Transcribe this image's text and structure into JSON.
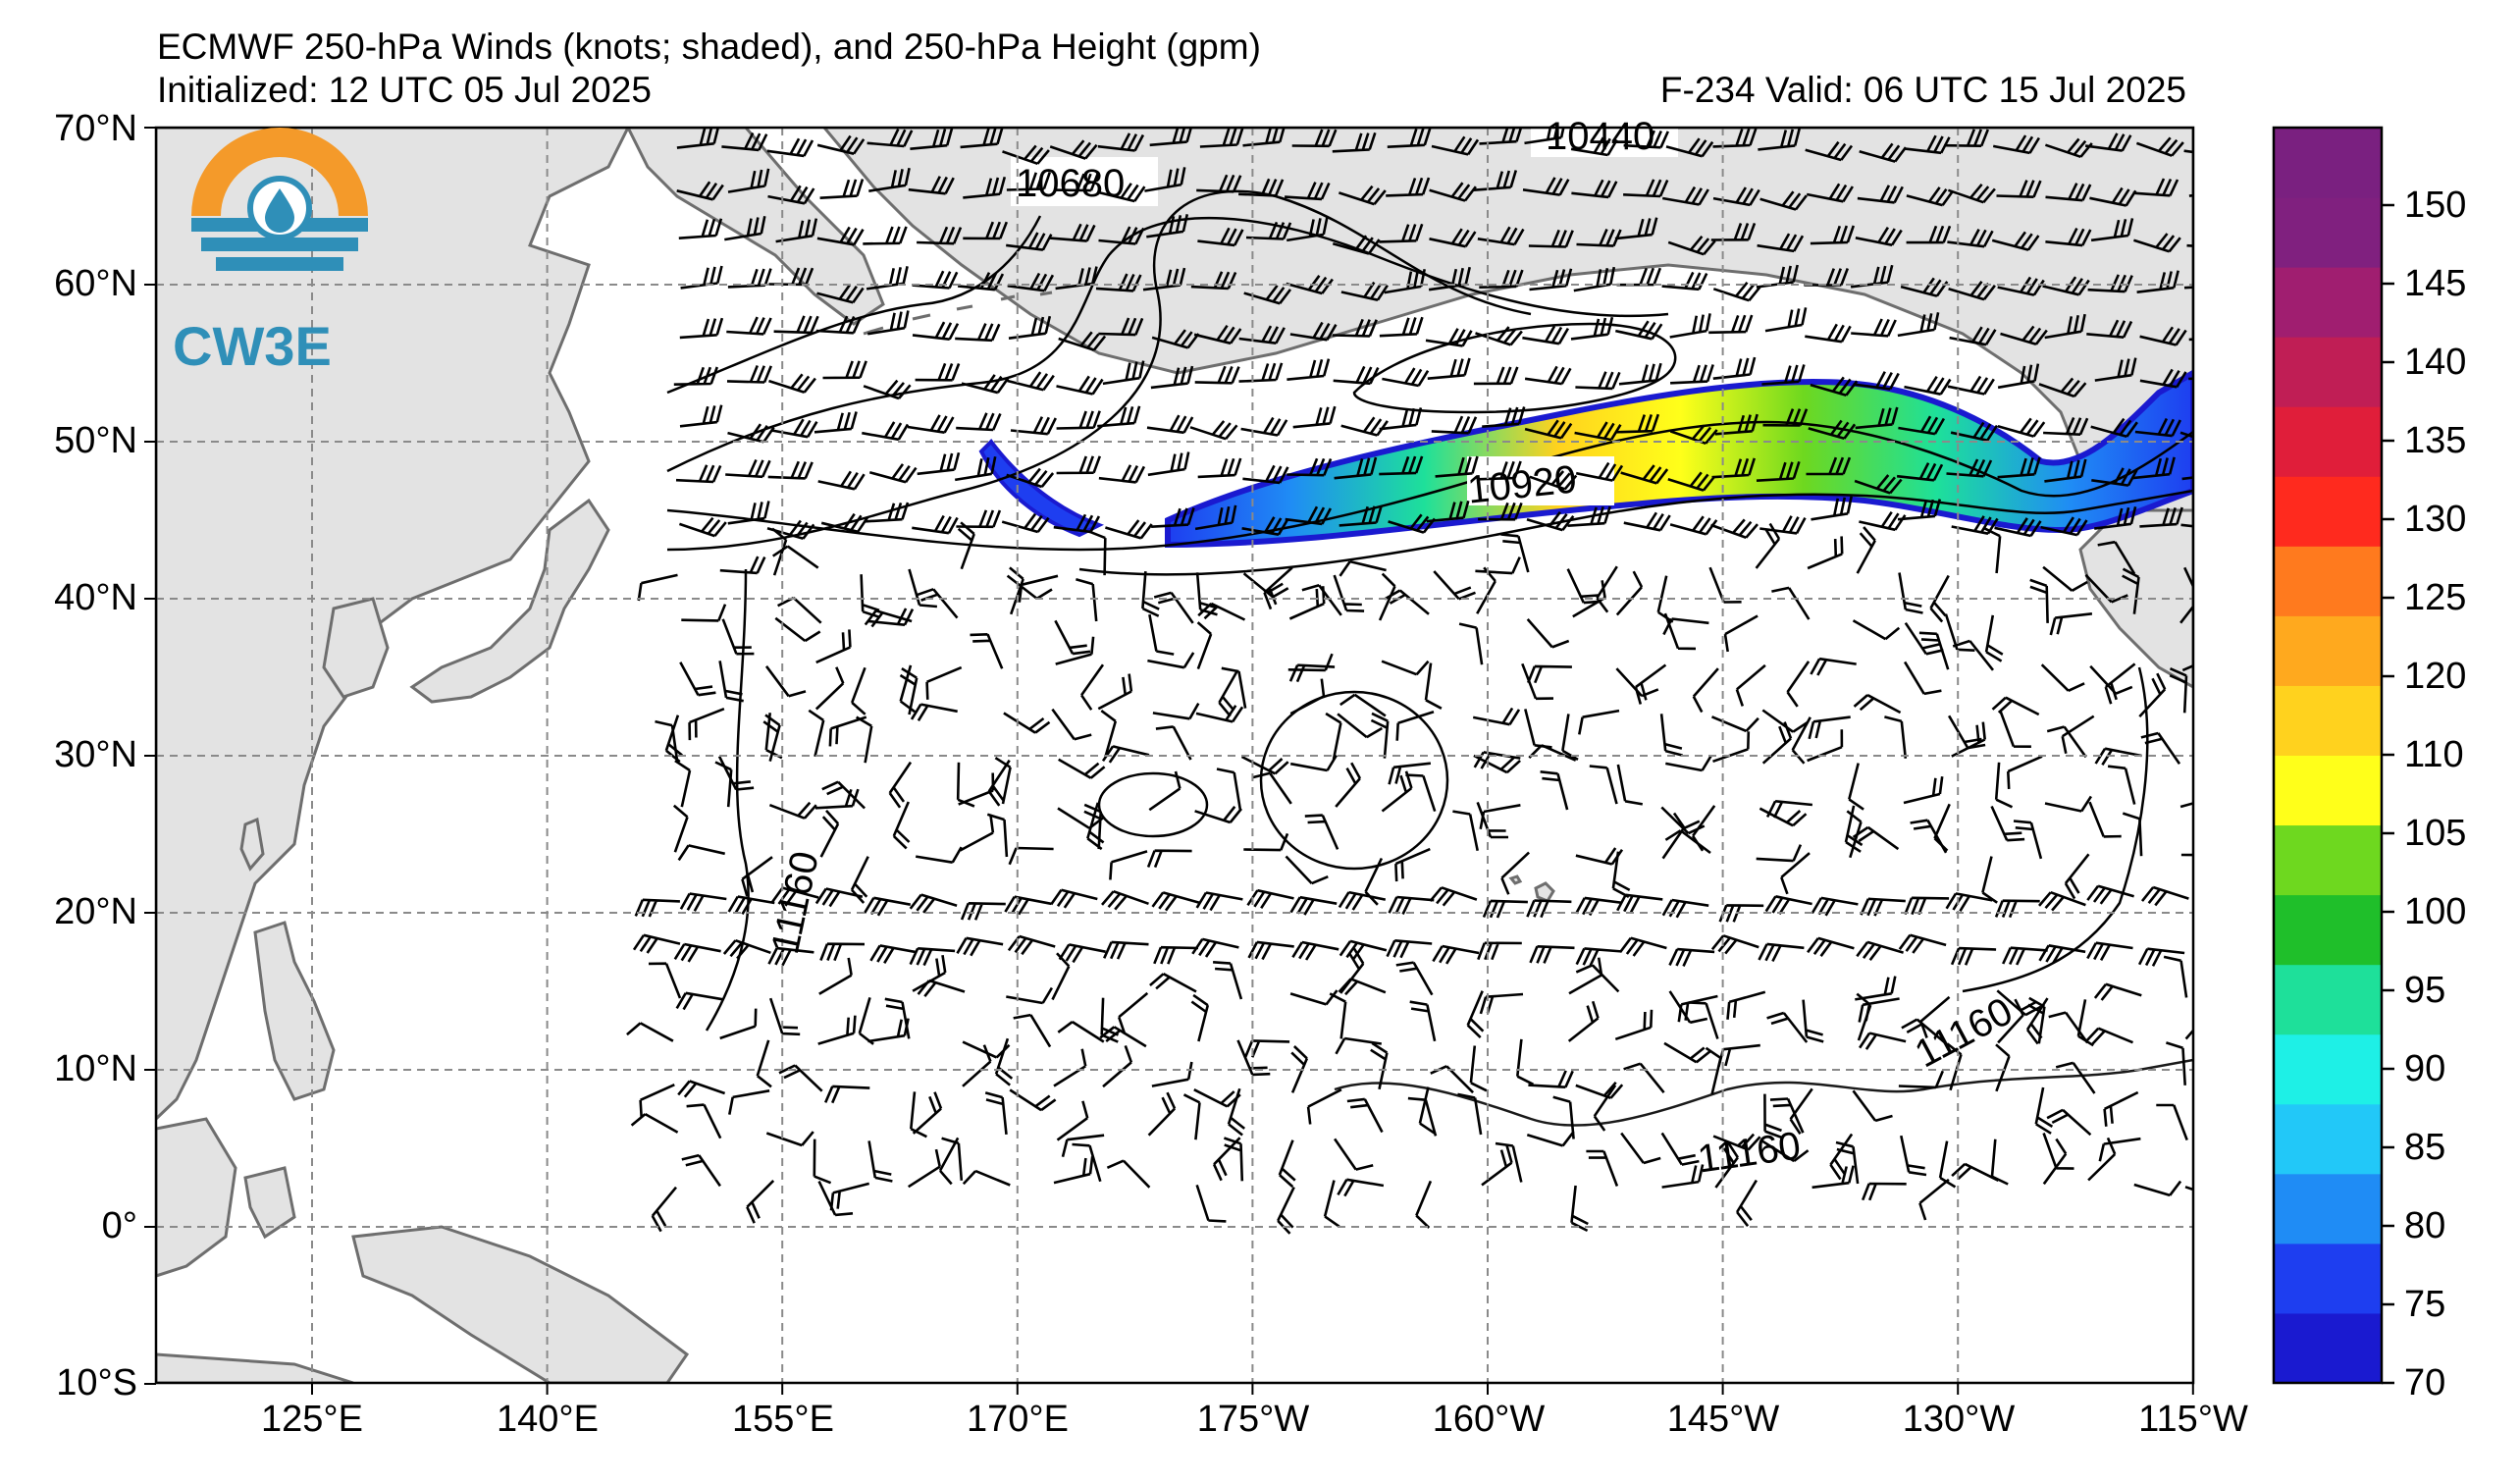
{
  "title": {
    "main": "ECMWF 250-hPa Winds (knots; shaded), and 250-hPa Height (gpm)",
    "initialized": "Initialized: 12 UTC 05 Jul 2025",
    "valid": "F-234  Valid: 06 UTC 15 Jul 2025"
  },
  "logo": {
    "text": "CW3E",
    "icon": "cw3e-water-drop-logo"
  },
  "map": {
    "lat_labels": [
      "70°N",
      "60°N",
      "50°N",
      "40°N",
      "30°N",
      "20°N",
      "10°N",
      "0°",
      "10°S"
    ],
    "lon_labels": [
      "125°E",
      "140°E",
      "155°E",
      "170°E",
      "175°W",
      "160°W",
      "145°W",
      "130°W",
      "115°W"
    ],
    "contour_labels": [
      "10680",
      "10440",
      "10920",
      "11160",
      "11160",
      "11160"
    ],
    "land_color": "#e3e3e3",
    "coast_color": "#6e6e6e",
    "grid_color": "#8a8a8a"
  },
  "colorbar": {
    "units": "knots",
    "labels": [
      "70",
      "75",
      "80",
      "85",
      "90",
      "95",
      "100",
      "105",
      "110",
      "120",
      "125",
      "130",
      "135",
      "140",
      "145",
      "150"
    ],
    "colors": [
      "#1a1ad0",
      "#1e3ef0",
      "#1f8cf5",
      "#22c8f8",
      "#1ef0e6",
      "#1ee09a",
      "#1fbf2a",
      "#6ed81f",
      "#ffff1a",
      "#ffd21e",
      "#ffa91e",
      "#ff7a1e",
      "#ff2a1e",
      "#e01e3a",
      "#c01e55",
      "#a01e70",
      "#80207f",
      "#7a2080"
    ]
  }
}
